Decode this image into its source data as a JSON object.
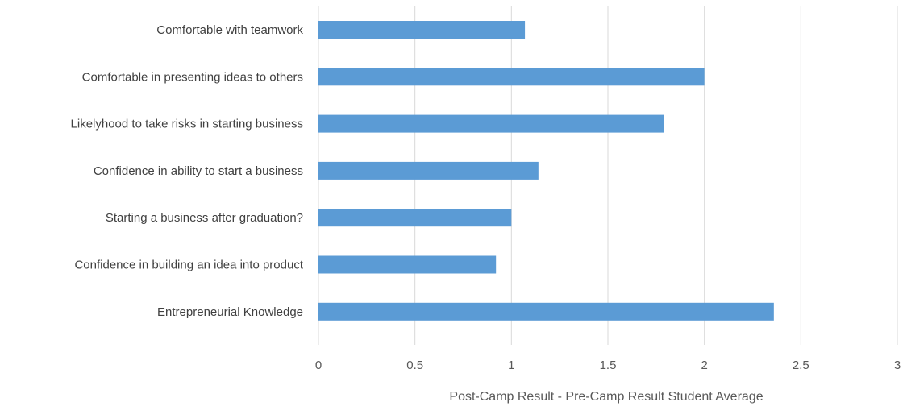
{
  "chart_data": {
    "type": "bar",
    "orientation": "horizontal",
    "categories": [
      "Comfortable with teamwork",
      "Comfortable in presenting ideas to others",
      "Likelyhood to take risks in starting business",
      "Confidence in ability to start a business",
      "Starting a business after graduation?",
      "Confidence in building an idea into product",
      "Entrepreneurial Knowledge"
    ],
    "values": [
      1.07,
      2.0,
      1.79,
      1.14,
      1.0,
      0.92,
      2.36
    ],
    "xlabel": "Post-Camp Result - Pre-Camp Result Student Average",
    "ylabel": "",
    "xlim": [
      0,
      3
    ],
    "xticks": [
      "0",
      "0.5",
      "1",
      "1.5",
      "2",
      "2.5",
      "3"
    ],
    "grid": "vertical",
    "legend": "none",
    "bar_color": "#5b9bd5",
    "grid_color": "#d9d9d9"
  }
}
